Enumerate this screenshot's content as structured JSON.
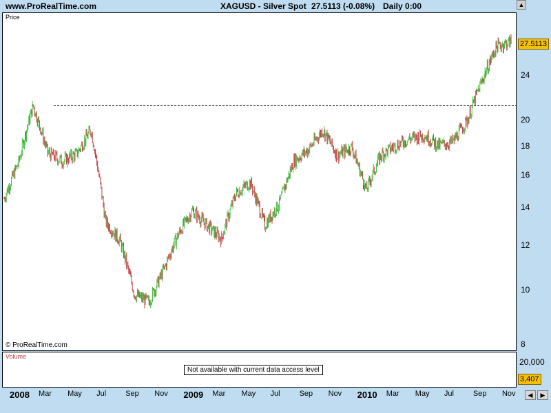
{
  "header": {
    "site": "www.ProRealTime.com",
    "symbol": "XAGUSD - Silver Spot",
    "price": "27.5113 (-0.08%)",
    "period": "Daily 0:00"
  },
  "price_panel": {
    "label": "Price",
    "copyright": "© ProRealTime.com",
    "last_price": "27.5113"
  },
  "volume_panel": {
    "label": "Volume",
    "message": "Not available with current data access level",
    "axis_label": "20,000",
    "last_value": "3,407"
  },
  "colors": {
    "up": "#40c040",
    "down": "#c04040",
    "background": "#c0dcf0"
  },
  "chart_data": {
    "type": "candlestick",
    "scale": "log",
    "ylim": [
      8,
      30
    ],
    "y_ticks": [
      8,
      10,
      12,
      14,
      16,
      18,
      20,
      24
    ],
    "x_tick_labels": [
      "2008",
      "Mar",
      "May",
      "Jul",
      "Sep",
      "Nov",
      "2009",
      "Mar",
      "May",
      "Jul",
      "Sep",
      "Nov",
      "2010",
      "Mar",
      "May",
      "Jul",
      "Sep",
      "Nov"
    ],
    "reference_line": 21.2,
    "series": [
      {
        "x": [
          "2008-01",
          "2008-02",
          "2008-03",
          "2008-04",
          "2008-05",
          "2008-06",
          "2008-07",
          "2008-08",
          "2008-09",
          "2008-10",
          "2008-11",
          "2008-12",
          "2009-01",
          "2009-02",
          "2009-03",
          "2009-04",
          "2009-05",
          "2009-06",
          "2009-07",
          "2009-08",
          "2009-09",
          "2009-10",
          "2009-11",
          "2009-12",
          "2010-01",
          "2010-02",
          "2010-03",
          "2010-04",
          "2010-05",
          "2010-06",
          "2010-07",
          "2010-08",
          "2010-09",
          "2010-10",
          "2010-11",
          "2010-12"
        ],
        "values": [
          14.5,
          16.8,
          21.2,
          17.5,
          16.9,
          17.4,
          19.2,
          13.2,
          12.2,
          9.8,
          9.5,
          10.8,
          12.5,
          13.8,
          13.0,
          12.3,
          14.8,
          15.5,
          13.0,
          14.2,
          16.9,
          17.7,
          19.2,
          17.3,
          17.9,
          15.0,
          17.3,
          18.0,
          18.5,
          18.8,
          18.0,
          18.3,
          20.0,
          23.5,
          27.0,
          27.5113
        ]
      }
    ]
  }
}
